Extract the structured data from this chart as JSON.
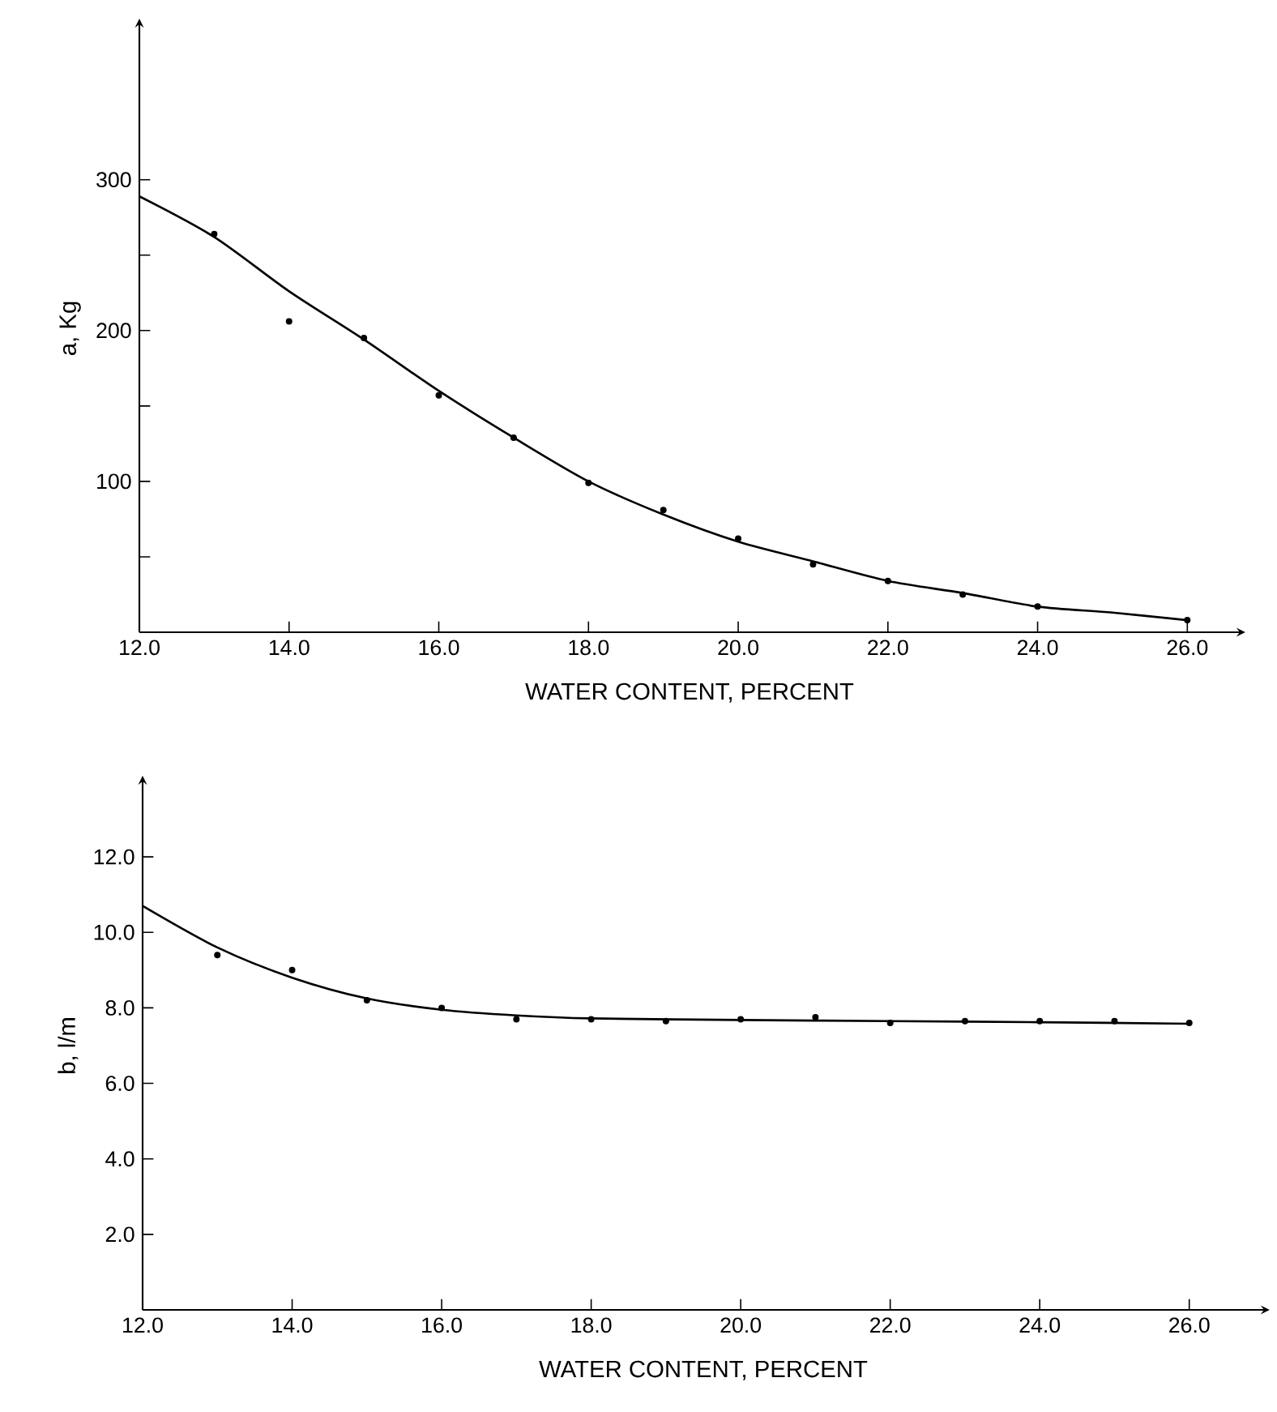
{
  "chart_data": [
    {
      "type": "scatter",
      "ylabel": "a, Kg",
      "xlabel": "WATER CONTENT, PERCENT",
      "xlim": [
        12,
        26.7
      ],
      "ylim": [
        0,
        403
      ],
      "xticks": [
        {
          "value": 12,
          "label": "12.0"
        },
        {
          "value": 14,
          "label": "14.0"
        },
        {
          "value": 16,
          "label": "16.0"
        },
        {
          "value": 18,
          "label": "18.0"
        },
        {
          "value": 20,
          "label": "20.0"
        },
        {
          "value": 22,
          "label": "22.0"
        },
        {
          "value": 24,
          "label": "24.0"
        },
        {
          "value": 26,
          "label": "26.0"
        }
      ],
      "yticks": [
        {
          "value": 50,
          "label": null
        },
        100,
        {
          "value": 150,
          "label": null
        },
        200,
        {
          "value": 250,
          "label": null
        },
        300
      ],
      "series": [
        {
          "marker": "circle",
          "color": "#000000",
          "x": [
            13,
            14,
            15,
            16,
            17,
            18,
            19,
            20,
            21,
            22,
            23,
            24,
            26
          ],
          "values": [
            264,
            206,
            195,
            157,
            129,
            99,
            81,
            62,
            45,
            34,
            25,
            17,
            8
          ]
        },
        {
          "type": "line",
          "marker": "none",
          "color": "#000000",
          "x": [
            12,
            13,
            14,
            15,
            16,
            17,
            18,
            19,
            20,
            21,
            22,
            23,
            24,
            25,
            26
          ],
          "values": [
            289,
            262,
            226,
            194,
            160,
            129,
            100,
            78,
            60,
            47,
            34,
            26,
            17,
            13,
            8
          ]
        }
      ]
    },
    {
      "type": "scatter",
      "ylabel": "b, l/m",
      "xlabel": "WATER CONTENT, PERCENT",
      "xlim": [
        12,
        27
      ],
      "ylim": [
        0,
        14
      ],
      "xticks": [
        {
          "value": 12,
          "label": "12.0"
        },
        {
          "value": 14,
          "label": "14.0"
        },
        {
          "value": 16,
          "label": "16.0"
        },
        {
          "value": 18,
          "label": "18.0"
        },
        {
          "value": 20,
          "label": "20.0"
        },
        {
          "value": 22,
          "label": "22.0"
        },
        {
          "value": 24,
          "label": "24.0"
        },
        {
          "value": 26,
          "label": "26.0"
        }
      ],
      "yticks": [
        {
          "value": 2,
          "label": "2.0"
        },
        {
          "value": 4,
          "label": "4.0"
        },
        {
          "value": 6,
          "label": "6.0"
        },
        {
          "value": 8,
          "label": "8.0"
        },
        {
          "value": 10,
          "label": "10.0"
        },
        {
          "value": 12,
          "label": "12.0"
        }
      ],
      "series": [
        {
          "marker": "circle",
          "color": "#000000",
          "x": [
            13,
            14,
            15,
            16,
            17,
            18,
            19,
            20,
            21,
            22,
            23,
            24,
            25,
            26
          ],
          "values": [
            9.4,
            9.0,
            8.2,
            8.0,
            7.7,
            7.7,
            7.65,
            7.7,
            7.75,
            7.6,
            7.65,
            7.65,
            7.65,
            7.6
          ]
        },
        {
          "type": "line",
          "marker": "none",
          "color": "#000000",
          "x": [
            12,
            13,
            14,
            15,
            16,
            17,
            18,
            20,
            22,
            24,
            26
          ],
          "values": [
            10.7,
            9.6,
            8.8,
            8.25,
            7.95,
            7.8,
            7.72,
            7.68,
            7.65,
            7.62,
            7.58
          ]
        }
      ]
    }
  ]
}
